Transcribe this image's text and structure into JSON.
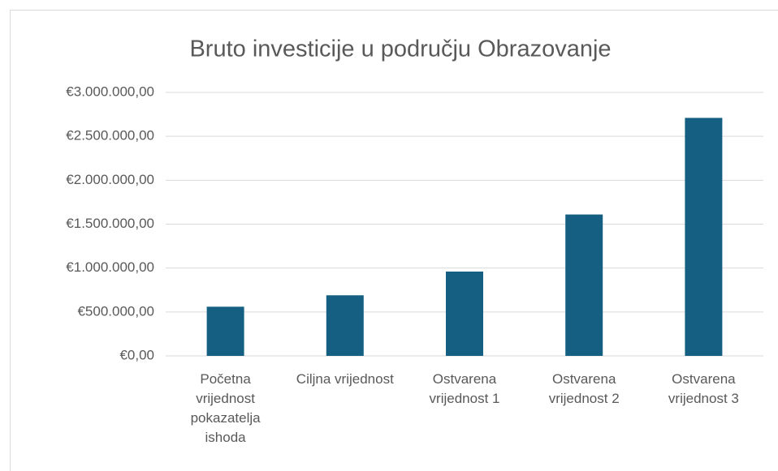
{
  "chart_data": {
    "type": "bar",
    "title": "Bruto investicije u području Obrazovanje",
    "categories": [
      "Početna vrijednost pokazatelja ishoda",
      "Ciljna vrijednost",
      "Ostvarena vrijednost 1",
      "Ostvarena vrijednost 2",
      "Ostvarena vrijednost 3"
    ],
    "values": [
      560000,
      690000,
      960000,
      1610000,
      2710000
    ],
    "color": "#156082",
    "ylim": [
      0,
      3000000
    ],
    "yticks": [
      {
        "value": 0,
        "label": "€0,00"
      },
      {
        "value": 500000,
        "label": "€500.000,00"
      },
      {
        "value": 1000000,
        "label": "€1.000.000,00"
      },
      {
        "value": 1500000,
        "label": "€1.500.000,00"
      },
      {
        "value": 2000000,
        "label": "€2.000.000,00"
      },
      {
        "value": 2500000,
        "label": "€2.500.000,00"
      },
      {
        "value": 3000000,
        "label": "€3.000.000,00"
      }
    ],
    "grid": true
  }
}
